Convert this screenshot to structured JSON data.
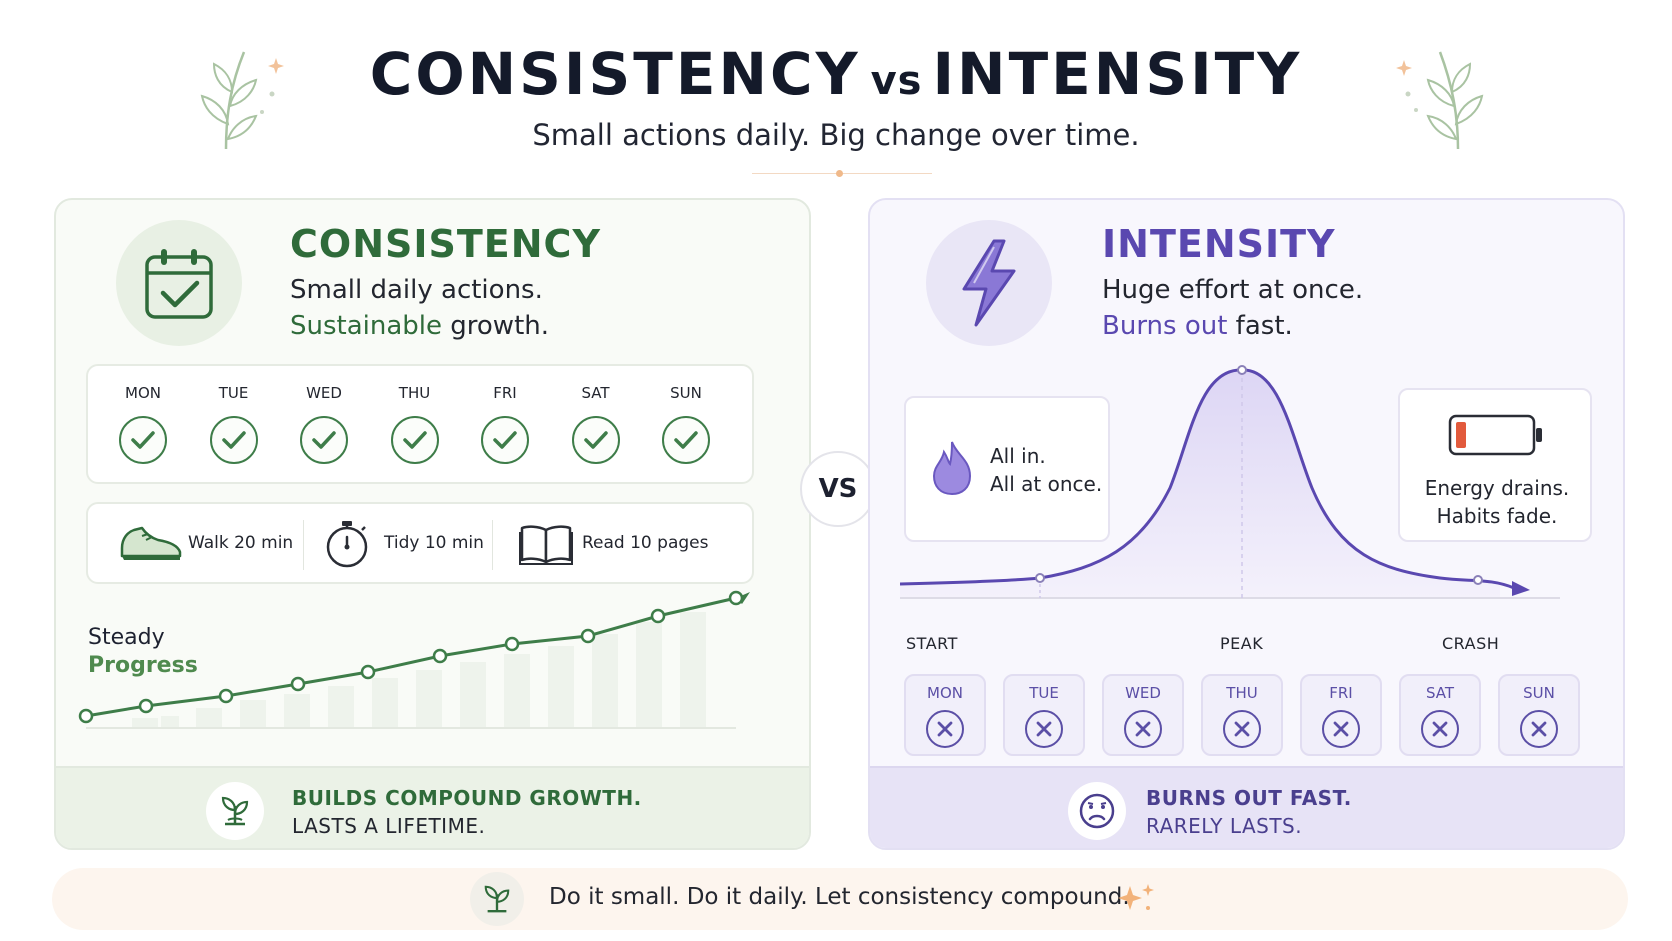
{
  "header": {
    "title_left": "CONSISTENCY",
    "title_vs": "vs",
    "title_right": "INTENSITY",
    "subtitle": "Small actions daily. Big change over time."
  },
  "consistency": {
    "title": "CONSISTENCY",
    "desc_line1": "Small daily actions.",
    "desc_highlight": "Sustainable",
    "desc_rest": " growth.",
    "days": [
      "MON",
      "TUE",
      "WED",
      "THU",
      "FRI",
      "SAT",
      "SUN"
    ],
    "habits": [
      {
        "label": "Walk 20 min",
        "icon": "sneaker-icon"
      },
      {
        "label": "Tidy 10 min",
        "icon": "stopwatch-icon"
      },
      {
        "label": "Read 10 pages",
        "icon": "book-icon"
      }
    ],
    "chart_label_1": "Steady",
    "chart_label_2": "Progress",
    "footer_line1": "BUILDS COMPOUND GROWTH.",
    "footer_line2": "LASTS A LIFETIME.",
    "accent": "#2f6b3a"
  },
  "vs_badge": "VS",
  "intensity": {
    "title": "INTENSITY",
    "desc_line1": "Huge effort at once.",
    "desc_highlight": "Burns out",
    "desc_rest": " fast.",
    "note_left_1": "All in.",
    "note_left_2": "All at once.",
    "note_right_1": "Energy drains.",
    "note_right_2": "Habits fade.",
    "axis_labels": [
      "START",
      "PEAK",
      "CRASH"
    ],
    "days": [
      "MON",
      "TUE",
      "WED",
      "THU",
      "FRI",
      "SAT",
      "SUN"
    ],
    "footer_line1": "BURNS OUT FAST.",
    "footer_line2": "RARELY LASTS.",
    "accent": "#5a48b0"
  },
  "banner": {
    "text": "Do it small. Do it daily. Let consistency compound."
  }
}
